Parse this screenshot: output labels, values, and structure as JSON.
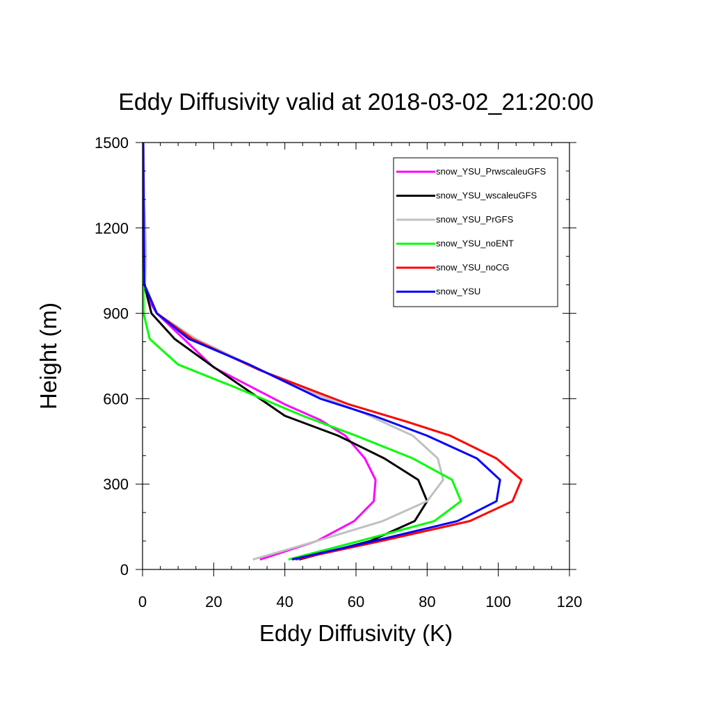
{
  "chart_data": {
    "type": "line",
    "title": "Eddy Diffusivity valid at 2018-03-02_21:20:00",
    "xlabel": "Eddy Diffusivity (K)",
    "ylabel": "Height (m)",
    "xlim": [
      0,
      120
    ],
    "ylim": [
      0,
      1500
    ],
    "xticks": [
      0,
      20,
      40,
      60,
      80,
      100,
      120
    ],
    "yticks": [
      0,
      300,
      600,
      900,
      1200,
      1500
    ],
    "grid": false,
    "legend_position": "top-right",
    "series": [
      {
        "name": "snow_YSU_PrwscaleuGFS",
        "color": "#ff00ff",
        "x": [
          33,
          49,
          59.5,
          65,
          65.5,
          62.5,
          57,
          50,
          40,
          20,
          4,
          2.5,
          0.5,
          0.3,
          0.2
        ],
        "y": [
          35,
          100,
          170,
          240,
          315,
          390,
          470,
          525,
          580,
          710,
          900,
          930,
          1000,
          1300,
          1500
        ]
      },
      {
        "name": "snow_YSU_wscaleuGFS",
        "color": "#000000",
        "x": [
          44,
          64,
          76.5,
          80,
          77.5,
          68,
          55,
          40,
          19,
          9,
          2.5,
          0.5,
          0.3,
          0.2
        ],
        "y": [
          35,
          100,
          170,
          240,
          315,
          390,
          470,
          540,
          720,
          810,
          900,
          1000,
          1200,
          1500
        ]
      },
      {
        "name": "snow_YSU_PrGFS",
        "color": "#c0c0c0",
        "x": [
          31,
          49,
          67.5,
          80,
          84.5,
          83,
          76,
          62,
          40,
          15,
          4,
          0.7,
          1,
          0.5,
          0.2
        ],
        "y": [
          35,
          100,
          170,
          240,
          315,
          390,
          470,
          550,
          660,
          810,
          900,
          1000,
          1100,
          1300,
          1500
        ]
      },
      {
        "name": "snow_YSU_noENT",
        "color": "#00ff00",
        "x": [
          41,
          61,
          82,
          89.5,
          87,
          76,
          60,
          45,
          26,
          10,
          2,
          0.3,
          0.2
        ],
        "y": [
          35,
          100,
          170,
          240,
          315,
          390,
          470,
          540,
          640,
          720,
          810,
          900,
          1500
        ]
      },
      {
        "name": "snow_YSU_noCG",
        "color": "#ff0000",
        "x": [
          43,
          67,
          92,
          104,
          106.5,
          99.5,
          86.5,
          74,
          58,
          33,
          14,
          4,
          0.5,
          0.3,
          0.2
        ],
        "y": [
          35,
          100,
          170,
          240,
          315,
          390,
          470,
          520,
          580,
          700,
          810,
          900,
          1000,
          1300,
          1500
        ]
      },
      {
        "name": "snow_YSU",
        "color": "#0000ff",
        "x": [
          42,
          65,
          88.5,
          99.5,
          100.5,
          94,
          80,
          65,
          50,
          30,
          13,
          4,
          0.5,
          0.3,
          0.2
        ],
        "y": [
          35,
          100,
          170,
          240,
          315,
          390,
          470,
          540,
          600,
          720,
          810,
          900,
          1000,
          1300,
          1500
        ]
      }
    ]
  }
}
